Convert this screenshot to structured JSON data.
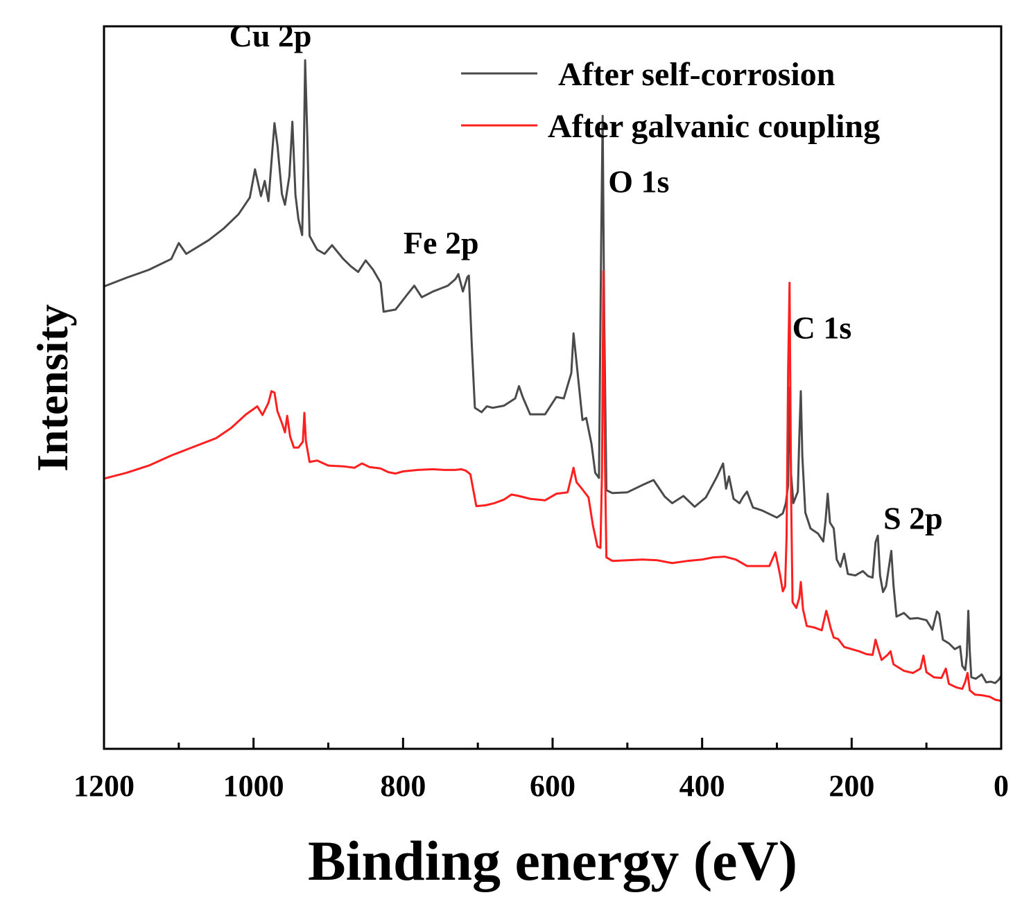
{
  "chart_data": {
    "type": "line",
    "xlabel": "Binding energy (eV)",
    "ylabel": "Intensity",
    "xlim": [
      1200,
      0
    ],
    "x_reversed": true,
    "ylim": [
      0,
      100
    ],
    "y_ticks_shown": false,
    "x_ticks": [
      1200,
      1000,
      800,
      600,
      400,
      200,
      0
    ],
    "x_tick_labels": [
      "1200",
      "1000",
      "800",
      "600",
      "400",
      "200",
      "0"
    ],
    "grid": false,
    "legend_position": "top-right",
    "series": [
      {
        "name": "After self-corrosion",
        "color": "#4a4a4a",
        "points": [
          [
            1200,
            64.0
          ],
          [
            1170,
            65.2
          ],
          [
            1140,
            66.3
          ],
          [
            1110,
            67.8
          ],
          [
            1100,
            70.0
          ],
          [
            1090,
            68.5
          ],
          [
            1060,
            70.4
          ],
          [
            1040,
            72.0
          ],
          [
            1020,
            74.0
          ],
          [
            1005,
            76.3
          ],
          [
            998,
            80.2
          ],
          [
            990,
            76.5
          ],
          [
            985,
            78.6
          ],
          [
            980,
            75.8
          ],
          [
            976,
            81.2
          ],
          [
            972,
            86.6
          ],
          [
            968,
            83.5
          ],
          [
            962,
            76.8
          ],
          [
            958,
            75.3
          ],
          [
            952,
            79.3
          ],
          [
            948,
            86.8
          ],
          [
            944,
            76.7
          ],
          [
            940,
            73.3
          ],
          [
            935,
            71.1
          ],
          [
            933,
            80.5
          ],
          [
            931,
            95.3
          ],
          [
            928,
            84.5
          ],
          [
            925,
            71.0
          ],
          [
            915,
            69.1
          ],
          [
            905,
            68.5
          ],
          [
            895,
            69.7
          ],
          [
            880,
            67.8
          ],
          [
            870,
            66.8
          ],
          [
            860,
            66.0
          ],
          [
            850,
            67.6
          ],
          [
            840,
            66.3
          ],
          [
            830,
            64.5
          ],
          [
            826,
            60.5
          ],
          [
            810,
            60.8
          ],
          [
            795,
            62.8
          ],
          [
            785,
            64.1
          ],
          [
            775,
            62.5
          ],
          [
            760,
            63.3
          ],
          [
            740,
            64.1
          ],
          [
            730,
            65.0
          ],
          [
            726,
            65.7
          ],
          [
            720,
            63.3
          ],
          [
            714,
            65.3
          ],
          [
            712,
            65.5
          ],
          [
            708,
            55.8
          ],
          [
            704,
            47.2
          ],
          [
            695,
            46.6
          ],
          [
            688,
            47.4
          ],
          [
            680,
            47.2
          ],
          [
            665,
            47.5
          ],
          [
            650,
            48.5
          ],
          [
            645,
            50.2
          ],
          [
            640,
            48.7
          ],
          [
            630,
            46.3
          ],
          [
            610,
            46.3
          ],
          [
            595,
            48.7
          ],
          [
            585,
            48.5
          ],
          [
            575,
            52.0
          ],
          [
            572,
            57.5
          ],
          [
            568,
            53.5
          ],
          [
            560,
            45.5
          ],
          [
            555,
            45.8
          ],
          [
            548,
            42.2
          ],
          [
            543,
            38.2
          ],
          [
            538,
            37.5
          ],
          [
            535,
            70.3
          ],
          [
            533,
            87.6
          ],
          [
            531,
            60.0
          ],
          [
            528,
            35.8
          ],
          [
            520,
            35.4
          ],
          [
            500,
            35.5
          ],
          [
            480,
            36.5
          ],
          [
            465,
            37.2
          ],
          [
            450,
            34.9
          ],
          [
            440,
            34.0
          ],
          [
            425,
            35.0
          ],
          [
            410,
            33.5
          ],
          [
            395,
            34.8
          ],
          [
            380,
            37.7
          ],
          [
            372,
            39.5
          ],
          [
            368,
            36.0
          ],
          [
            364,
            37.7
          ],
          [
            358,
            34.6
          ],
          [
            350,
            34.0
          ],
          [
            345,
            34.9
          ],
          [
            340,
            35.6
          ],
          [
            332,
            33.4
          ],
          [
            320,
            33.0
          ],
          [
            300,
            32.0
          ],
          [
            292,
            32.6
          ],
          [
            288,
            34.0
          ],
          [
            285,
            36.5
          ],
          [
            283,
            50.0
          ],
          [
            281,
            38.0
          ],
          [
            278,
            34.0
          ],
          [
            272,
            35.6
          ],
          [
            270,
            43.0
          ],
          [
            268,
            49.5
          ],
          [
            266,
            40.5
          ],
          [
            262,
            32.7
          ],
          [
            255,
            30.5
          ],
          [
            245,
            29.8
          ],
          [
            238,
            28.7
          ],
          [
            235,
            31.5
          ],
          [
            232,
            35.3
          ],
          [
            229,
            31.3
          ],
          [
            224,
            30.5
          ],
          [
            220,
            26.2
          ],
          [
            215,
            25.2
          ],
          [
            210,
            27.0
          ],
          [
            205,
            24.2
          ],
          [
            195,
            24.0
          ],
          [
            185,
            24.6
          ],
          [
            178,
            23.9
          ],
          [
            172,
            23.7
          ],
          [
            168,
            28.6
          ],
          [
            165,
            29.5
          ],
          [
            162,
            24.0
          ],
          [
            158,
            21.7
          ],
          [
            154,
            22.5
          ],
          [
            150,
            25.3
          ],
          [
            147,
            27.4
          ],
          [
            144,
            22.6
          ],
          [
            140,
            18.3
          ],
          [
            130,
            18.8
          ],
          [
            122,
            18.0
          ],
          [
            112,
            18.1
          ],
          [
            100,
            17.8
          ],
          [
            92,
            16.5
          ],
          [
            86,
            19.0
          ],
          [
            83,
            18.7
          ],
          [
            78,
            15.1
          ],
          [
            70,
            14.6
          ],
          [
            62,
            13.8
          ],
          [
            55,
            14.2
          ],
          [
            52,
            11.5
          ],
          [
            48,
            10.9
          ],
          [
            46,
            12.9
          ],
          [
            44,
            19.1
          ],
          [
            42,
            13.5
          ],
          [
            40,
            9.9
          ],
          [
            34,
            9.7
          ],
          [
            26,
            10.3
          ],
          [
            20,
            9.2
          ],
          [
            14,
            9.3
          ],
          [
            8,
            9.1
          ],
          [
            3,
            9.6
          ],
          [
            0,
            10.1
          ]
        ]
      },
      {
        "name": "After galvanic coupling",
        "color": "#ff1f1f",
        "points": [
          [
            1200,
            37.4
          ],
          [
            1170,
            38.2
          ],
          [
            1140,
            39.2
          ],
          [
            1110,
            40.6
          ],
          [
            1080,
            41.8
          ],
          [
            1050,
            43.0
          ],
          [
            1030,
            44.4
          ],
          [
            1010,
            46.3
          ],
          [
            995,
            47.4
          ],
          [
            988,
            46.2
          ],
          [
            980,
            47.9
          ],
          [
            976,
            49.5
          ],
          [
            972,
            49.3
          ],
          [
            968,
            46.7
          ],
          [
            962,
            45.1
          ],
          [
            958,
            43.8
          ],
          [
            955,
            46.1
          ],
          [
            951,
            43.2
          ],
          [
            946,
            41.7
          ],
          [
            940,
            41.7
          ],
          [
            934,
            42.5
          ],
          [
            932,
            46.5
          ],
          [
            930,
            42.6
          ],
          [
            925,
            39.7
          ],
          [
            915,
            39.9
          ],
          [
            900,
            39.2
          ],
          [
            880,
            39.1
          ],
          [
            865,
            38.9
          ],
          [
            855,
            39.5
          ],
          [
            845,
            39.0
          ],
          [
            830,
            38.8
          ],
          [
            820,
            38.3
          ],
          [
            810,
            38.1
          ],
          [
            800,
            38.4
          ],
          [
            780,
            38.6
          ],
          [
            760,
            38.7
          ],
          [
            745,
            38.6
          ],
          [
            730,
            38.6
          ],
          [
            722,
            38.7
          ],
          [
            716,
            38.5
          ],
          [
            710,
            38.0
          ],
          [
            706,
            35.8
          ],
          [
            702,
            33.6
          ],
          [
            690,
            33.7
          ],
          [
            678,
            34.0
          ],
          [
            665,
            34.5
          ],
          [
            655,
            35.2
          ],
          [
            645,
            35.0
          ],
          [
            630,
            34.6
          ],
          [
            610,
            34.4
          ],
          [
            595,
            35.3
          ],
          [
            580,
            35.5
          ],
          [
            575,
            37.6
          ],
          [
            572,
            38.9
          ],
          [
            568,
            36.9
          ],
          [
            560,
            35.9
          ],
          [
            552,
            34.8
          ],
          [
            546,
            30.9
          ],
          [
            540,
            28.0
          ],
          [
            536,
            27.8
          ],
          [
            534,
            38.0
          ],
          [
            532,
            66.1
          ],
          [
            530,
            40.0
          ],
          [
            528,
            26.5
          ],
          [
            520,
            26.0
          ],
          [
            500,
            26.1
          ],
          [
            480,
            26.2
          ],
          [
            460,
            26.1
          ],
          [
            440,
            25.7
          ],
          [
            420,
            26.0
          ],
          [
            400,
            26.2
          ],
          [
            385,
            26.5
          ],
          [
            370,
            26.6
          ],
          [
            355,
            26.2
          ],
          [
            340,
            25.3
          ],
          [
            325,
            25.3
          ],
          [
            310,
            25.3
          ],
          [
            302,
            27.2
          ],
          [
            296,
            24.2
          ],
          [
            292,
            21.8
          ],
          [
            289,
            22.5
          ],
          [
            287,
            29.5
          ],
          [
            285,
            52.5
          ],
          [
            283,
            64.5
          ],
          [
            281,
            35.0
          ],
          [
            279,
            20.3
          ],
          [
            274,
            19.5
          ],
          [
            270,
            20.9
          ],
          [
            268,
            23.1
          ],
          [
            265,
            19.3
          ],
          [
            260,
            17.0
          ],
          [
            250,
            16.8
          ],
          [
            240,
            16.4
          ],
          [
            234,
            19.1
          ],
          [
            232,
            18.4
          ],
          [
            228,
            16.7
          ],
          [
            224,
            15.4
          ],
          [
            218,
            15.2
          ],
          [
            210,
            14.1
          ],
          [
            200,
            13.8
          ],
          [
            190,
            13.5
          ],
          [
            180,
            13.1
          ],
          [
            172,
            13.0
          ],
          [
            168,
            15.1
          ],
          [
            165,
            14.0
          ],
          [
            160,
            12.3
          ],
          [
            152,
            13.0
          ],
          [
            148,
            13.5
          ],
          [
            144,
            11.7
          ],
          [
            138,
            11.3
          ],
          [
            130,
            10.8
          ],
          [
            118,
            10.5
          ],
          [
            108,
            11.1
          ],
          [
            104,
            12.9
          ],
          [
            100,
            10.6
          ],
          [
            90,
            9.9
          ],
          [
            80,
            9.8
          ],
          [
            74,
            11.1
          ],
          [
            70,
            9.0
          ],
          [
            60,
            8.5
          ],
          [
            52,
            8.3
          ],
          [
            48,
            9.3
          ],
          [
            45,
            10.5
          ],
          [
            42,
            8.1
          ],
          [
            35,
            7.5
          ],
          [
            25,
            7.4
          ],
          [
            15,
            7.2
          ],
          [
            8,
            6.8
          ],
          [
            3,
            6.7
          ],
          [
            0,
            6.6
          ]
        ]
      }
    ],
    "annotations": [
      {
        "text": "Cu 2p",
        "x": 931,
        "y": 95.3
      },
      {
        "text": "Fe 2p",
        "x": 712,
        "y": 65.5
      },
      {
        "text": "O 1s",
        "x": 533,
        "y": 87.6
      },
      {
        "text": "C 1s",
        "x": 285,
        "y": 64.5
      },
      {
        "text": "S 2p",
        "x": 165,
        "y": 29.5
      }
    ]
  }
}
